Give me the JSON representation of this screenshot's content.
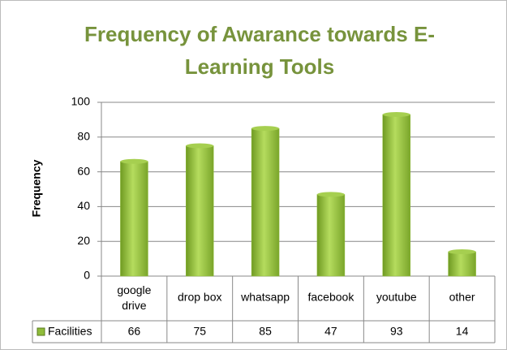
{
  "chart_data": {
    "type": "bar",
    "title": "Frequency of Awarance towards E-Learning Tools",
    "y_label": "Frequency",
    "categories": [
      "google drive",
      "drop box",
      "whatsapp",
      "facebook",
      "youtube",
      "other"
    ],
    "series": [
      {
        "name": "Facilities",
        "color": "#8fbc3a",
        "values": [
          66,
          75,
          85,
          47,
          93,
          14
        ]
      }
    ],
    "ylim": [
      0,
      100
    ],
    "yticks": [
      0,
      20,
      40,
      60,
      80,
      100
    ],
    "grid": true,
    "data_table": true
  }
}
